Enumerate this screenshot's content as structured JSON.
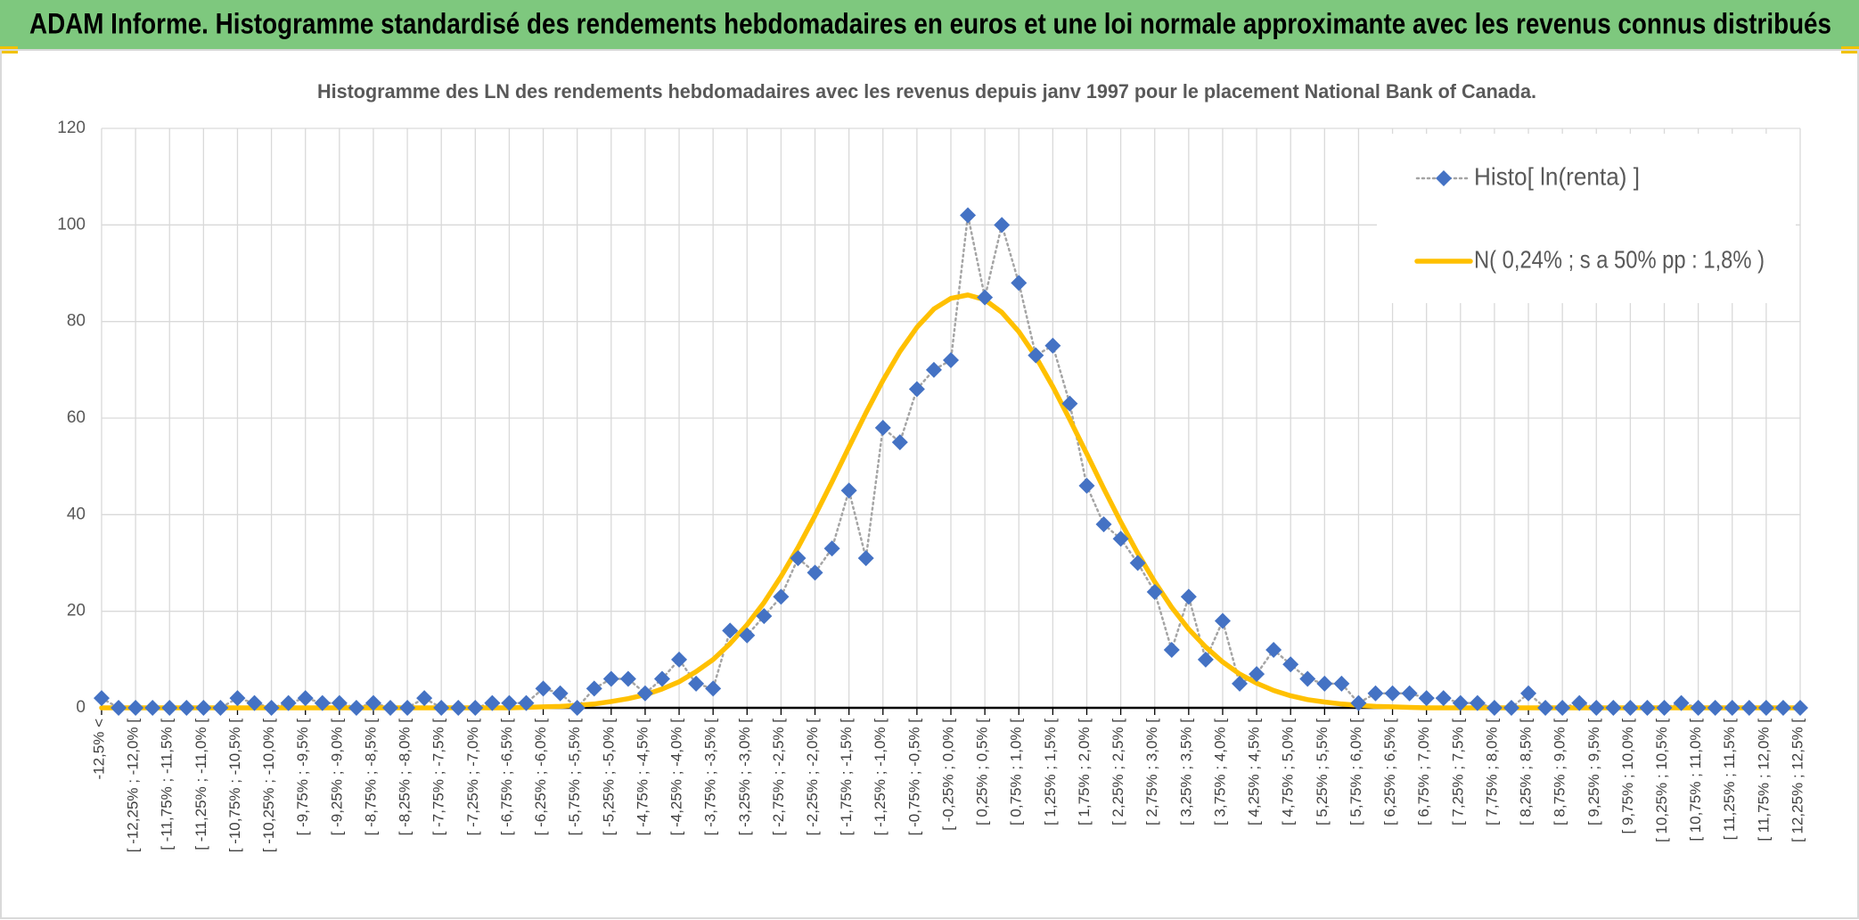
{
  "header": {
    "title": "ADAM Informe. Histogramme standardisé des rendements hebdomadaires en euros et une loi normale approximante avec les revenus connus distribués"
  },
  "chart_data": {
    "type": "line",
    "title": "Histogramme des LN des rendements hebdomadaires avec les revenus depuis janv 1997 pour le placement National Bank of Canada.",
    "categories": [
      "-12,5% <",
      null,
      "[ -12,25% ; -12,0% [",
      null,
      "[ -11,75% ; -11,5% [",
      null,
      "[ -11,25% ; -11,0% [",
      null,
      "[ -10,75% ; -10,5% [",
      null,
      "[ -10,25% ; -10,0% [",
      null,
      "[ -9,75% ; -9,5% [",
      null,
      "[ -9,25% ; -9,0% [",
      null,
      "[ -8,75% ; -8,5% [",
      null,
      "[ -8,25% ; -8,0% [",
      null,
      "[ -7,75% ; -7,5% [",
      null,
      "[ -7,25% ; -7,0% [",
      null,
      "[ -6,75% ; -6,5% [",
      null,
      "[ -6,25% ; -6,0% [",
      null,
      "[ -5,75% ; -5,5% [",
      null,
      "[ -5,25% ; -5,0% [",
      null,
      "[ -4,75% ; -4,5% [",
      null,
      "[ -4,25% ; -4,0% [",
      null,
      "[ -3,75% ; -3,5% [",
      null,
      "[ -3,25% ; -3,0% [",
      null,
      "[ -2,75% ; -2,5% [",
      null,
      "[ -2,25% ; -2,0% [",
      null,
      "[ -1,75% ; -1,5% [",
      null,
      "[ -1,25% ; -1,0% [",
      null,
      "[ -0,75% ; -0,5% [",
      null,
      "[ -0,25% ; 0,0% [",
      null,
      "[ 0,25% ; 0,5% [",
      null,
      "[ 0,75% ; 1,0% [",
      null,
      "[ 1,25% ; 1,5% [",
      null,
      "[ 1,75% ; 2,0% [",
      null,
      "[ 2,25% ; 2,5% [",
      null,
      "[ 2,75% ; 3,0% [",
      null,
      "[ 3,25% ; 3,5% [",
      null,
      "[ 3,75% ; 4,0% [",
      null,
      "[ 4,25% ; 4,5% [",
      null,
      "[ 4,75% ; 5,0% [",
      null,
      "[ 5,25% ; 5,5% [",
      null,
      "[ 5,75% ; 6,0% [",
      null,
      "[ 6,25% ; 6,5% [",
      null,
      "[ 6,75% ; 7,0% [",
      null,
      "[ 7,25% ; 7,5% [",
      null,
      "[ 7,75% ; 8,0% [",
      null,
      "[ 8,25% ; 8,5% [",
      null,
      "[ 8,75% ; 9,0% [",
      null,
      "[ 9,25% ; 9,5% [",
      null,
      "[ 9,75% ; 10,0% [",
      null,
      "[ 10,25% ; 10,5% [",
      null,
      "[ 10,75% ; 11,0% [",
      null,
      "[ 11,25% ; 11,5% [",
      null,
      "[ 11,75% ; 12,0% [",
      null,
      "[ 12,25% ; 12,5% ["
    ],
    "series": [
      {
        "name": "Histo[ ln(renta) ]",
        "color": "#4472c4",
        "line_color": "#a5a5a5",
        "marker": "diamond",
        "values": [
          2,
          0,
          0,
          0,
          0,
          0,
          0,
          0,
          2,
          1,
          0,
          1,
          2,
          1,
          1,
          0,
          1,
          0,
          0,
          2,
          0,
          0,
          0,
          1,
          1,
          1,
          4,
          3,
          0,
          4,
          6,
          6,
          3,
          6,
          10,
          5,
          4,
          16,
          15,
          19,
          23,
          31,
          28,
          33,
          45,
          31,
          58,
          55,
          66,
          70,
          72,
          102,
          85,
          100,
          88,
          73,
          75,
          63,
          46,
          38,
          35,
          30,
          24,
          12,
          23,
          10,
          18,
          5,
          7,
          12,
          9,
          6,
          5,
          5,
          1,
          3,
          3,
          3,
          2,
          2,
          1,
          1,
          0,
          0,
          3,
          0,
          0,
          1,
          0,
          0,
          0,
          0,
          0,
          1,
          0,
          0,
          0,
          0,
          0,
          0,
          0
        ]
      },
      {
        "name": "N( 0,24% ; s a 50% pp : 1,8% )",
        "color": "#ffc000",
        "values": [
          0,
          0,
          0,
          0,
          0,
          0,
          0,
          0,
          0,
          0,
          0,
          0,
          0,
          0,
          0,
          0,
          0,
          0,
          0,
          0,
          0,
          0,
          0,
          0,
          0,
          0.1,
          0.2,
          0.3,
          0.5,
          0.8,
          1.3,
          1.9,
          2.7,
          3.9,
          5.4,
          7.5,
          10.0,
          13.3,
          17.2,
          21.8,
          27.2,
          33.2,
          39.8,
          46.8,
          54.0,
          61.1,
          67.8,
          73.8,
          78.8,
          82.6,
          84.8,
          85.5,
          84.5,
          81.9,
          77.9,
          72.7,
          66.5,
          59.7,
          52.6,
          45.4,
          38.5,
          32.0,
          26.1,
          20.8,
          16.3,
          12.6,
          9.5,
          7.0,
          5.1,
          3.6,
          2.5,
          1.7,
          1.2,
          0.8,
          0.5,
          0.3,
          0.2,
          0.1,
          0,
          0,
          0,
          0,
          0,
          0,
          0,
          0,
          0,
          0,
          0,
          0,
          0,
          0,
          0,
          0,
          0,
          0,
          0,
          0,
          0,
          0,
          0
        ]
      }
    ],
    "ylim": [
      0,
      120
    ],
    "yticks": [
      0,
      20,
      40,
      60,
      80,
      100,
      120
    ],
    "grid": true,
    "legend": "top-right"
  }
}
